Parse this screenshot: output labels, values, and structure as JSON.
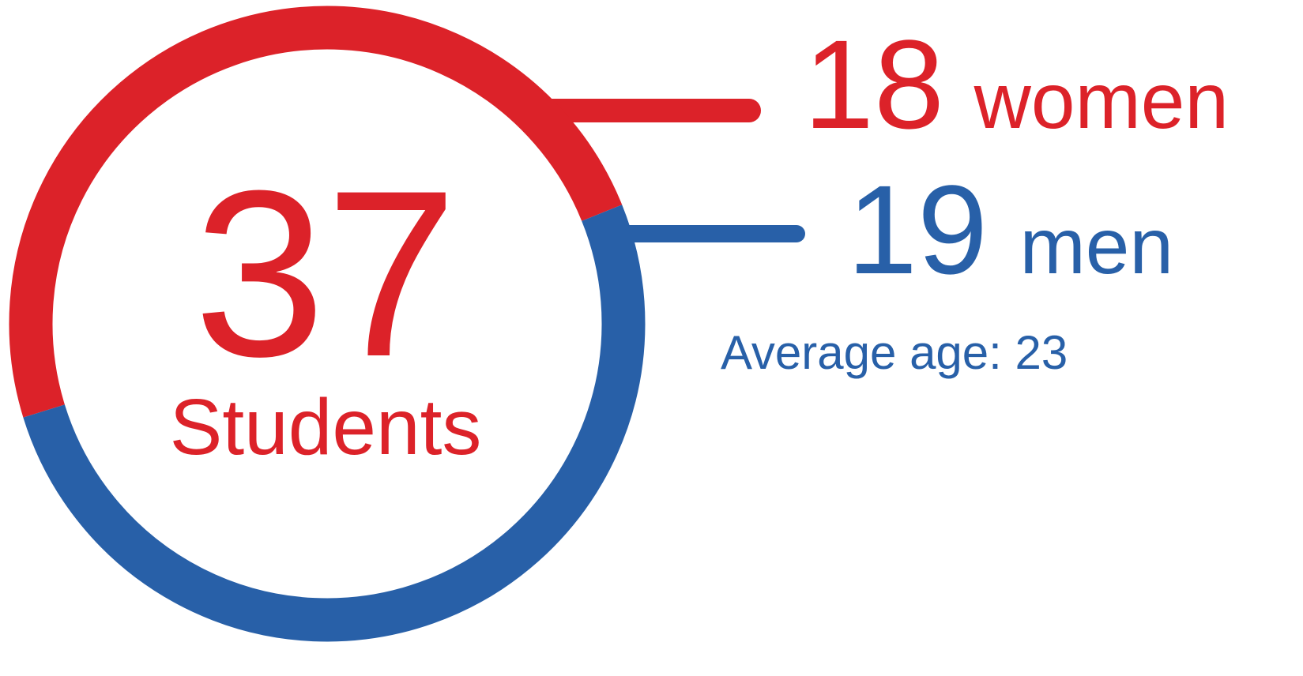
{
  "chart_data": {
    "type": "donut",
    "total": 37,
    "center_label": "Students",
    "categories": [
      "women",
      "men"
    ],
    "values": [
      18,
      19
    ],
    "colors": [
      "#dc2229",
      "#2860a8"
    ],
    "annotation": "Average age: 23"
  }
}
